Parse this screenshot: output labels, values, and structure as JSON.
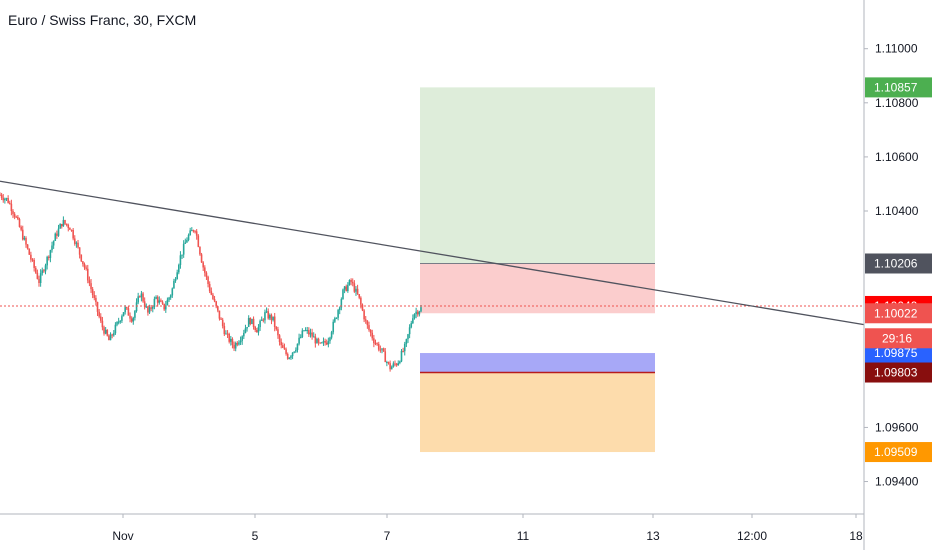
{
  "header": {
    "title": "Euro / Swiss Franc, 30, FXCM"
  },
  "chart_data": {
    "type": "candlestick",
    "title": "Euro / Swiss Franc, 30, FXCM",
    "ylim": [
      1.0928,
      1.1118
    ],
    "y_ticks": [
      1.11,
      1.108,
      1.106,
      1.104,
      1.096,
      1.094
    ],
    "y_tick_labels": [
      "1.11000",
      "1.10800",
      "1.10600",
      "1.10400",
      "1.09600",
      "1.09400"
    ],
    "x_tick_labels": [
      "Nov",
      "5",
      "7",
      "11",
      "13",
      "12:00",
      "18"
    ],
    "price_tags": [
      {
        "value": 1.10857,
        "label": "1.10857",
        "color": "#4caf50"
      },
      {
        "value": 1.10206,
        "label": "1.10206",
        "color": "#50535e"
      },
      {
        "value": 1.10049,
        "label": "1.10049",
        "color": "#ff0000"
      },
      {
        "value": 1.10022,
        "label": "1.10022",
        "color": "#ef5350"
      },
      {
        "value": 1.09875,
        "label": "1.09875",
        "color": "#2962ff"
      },
      {
        "value": 1.09803,
        "label": "1.09803",
        "color": "#880e0e"
      },
      {
        "value": 1.09509,
        "label": "1.09509",
        "color": "#ff9800"
      }
    ],
    "countdown": {
      "label": "29:16",
      "color": "#ef5350"
    },
    "current_price": 1.10049,
    "long_position": {
      "target": 1.10857,
      "entry": 1.10206,
      "stop": 1.10022
    },
    "short_position": {
      "entry": 1.09803,
      "stop": 1.09875,
      "target": 1.09509
    },
    "trendline": {
      "from": 1.1051,
      "to": 1.0998
    },
    "price_path": [
      1.1046,
      1.1044,
      1.1038,
      1.103,
      1.1022,
      1.1014,
      1.1022,
      1.103,
      1.1036,
      1.1034,
      1.1026,
      1.1018,
      1.1008,
      1.0998,
      1.0992,
      1.0998,
      1.1004,
      1.1,
      1.101,
      1.1002,
      1.1008,
      1.1004,
      1.101,
      1.1022,
      1.103,
      1.1034,
      1.102,
      1.101,
      1.1002,
      1.0994,
      1.099,
      1.0994,
      1.1,
      1.0996,
      1.1002,
      1.1,
      1.099,
      1.0986,
      1.099,
      1.0996,
      1.0994,
      1.099,
      1.0992,
      1.1,
      1.101,
      1.1014,
      1.1008,
      1.0998,
      1.0992,
      1.0988,
      1.0982,
      1.0984,
      1.099,
      1.1002,
      1.1004
    ],
    "grid": false
  },
  "colors": {
    "up": "#26a69a",
    "down": "#ef5350",
    "text": "#131722",
    "axis": "#b2b5be"
  }
}
